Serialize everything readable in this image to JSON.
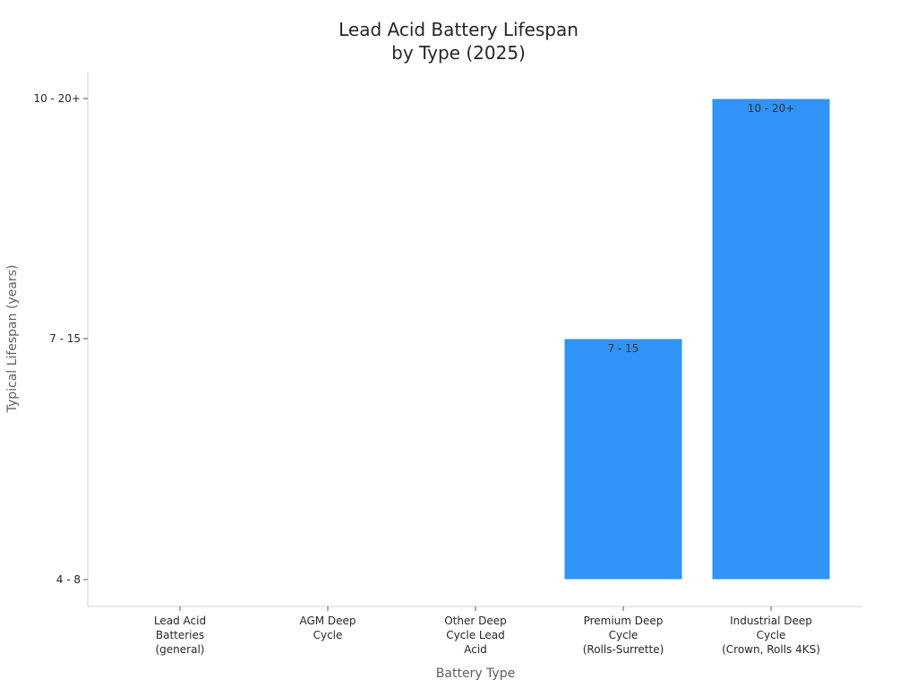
{
  "chart_data": {
    "type": "bar",
    "title": [
      "Lead Acid Battery Lifespan",
      "by Type (2025)"
    ],
    "xlabel": "Battery Type",
    "ylabel": "Typical Lifespan (years)",
    "y_ticks": [
      "4 - 8",
      "7 - 15",
      "10 - 20+"
    ],
    "grid": false,
    "categories": [
      [
        "Lead Acid",
        "Batteries",
        "(general)"
      ],
      [
        "AGM Deep",
        "Cycle"
      ],
      [
        "Other Deep",
        "Cycle Lead",
        "Acid"
      ],
      [
        "Premium Deep",
        "Cycle",
        "(Rolls-Surrette)"
      ],
      [
        "Industrial Deep",
        "Cycle",
        "(Crown, Rolls 4KS)"
      ]
    ],
    "values": [
      "4 - 8",
      "4 - 8",
      "4 - 8",
      "7 - 15",
      "10 - 20+"
    ],
    "bar_labels": [
      "",
      "",
      "",
      "7 - 15",
      "10 - 20+"
    ],
    "bar_color": "#2f93f7"
  }
}
